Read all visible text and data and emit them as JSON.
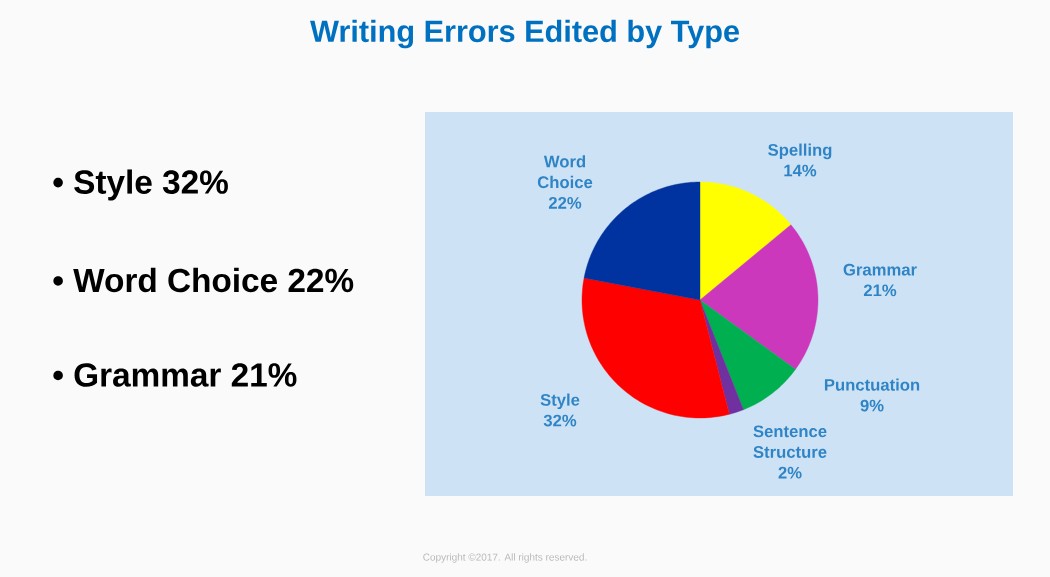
{
  "chart_data": {
    "type": "pie",
    "title": "Writing Errors Edited by Type",
    "categories": [
      "Spelling",
      "Grammar",
      "Punctuation",
      "Sentence Structure",
      "Style",
      "Word Choice"
    ],
    "values": [
      14,
      21,
      9,
      2,
      32,
      22
    ],
    "colors": [
      "#ffff00",
      "#cc38bc",
      "#00b050",
      "#7030a0",
      "#ff0000",
      "#0033a0"
    ],
    "value_labels": [
      "14%",
      "21%",
      "9%",
      "2%",
      "32%",
      "22%"
    ],
    "annotations": [
      "• Style  32%",
      "• Word Choice 22%",
      "• Grammar  21%",
      "Copyright ©2017. All rights reserved."
    ]
  }
}
